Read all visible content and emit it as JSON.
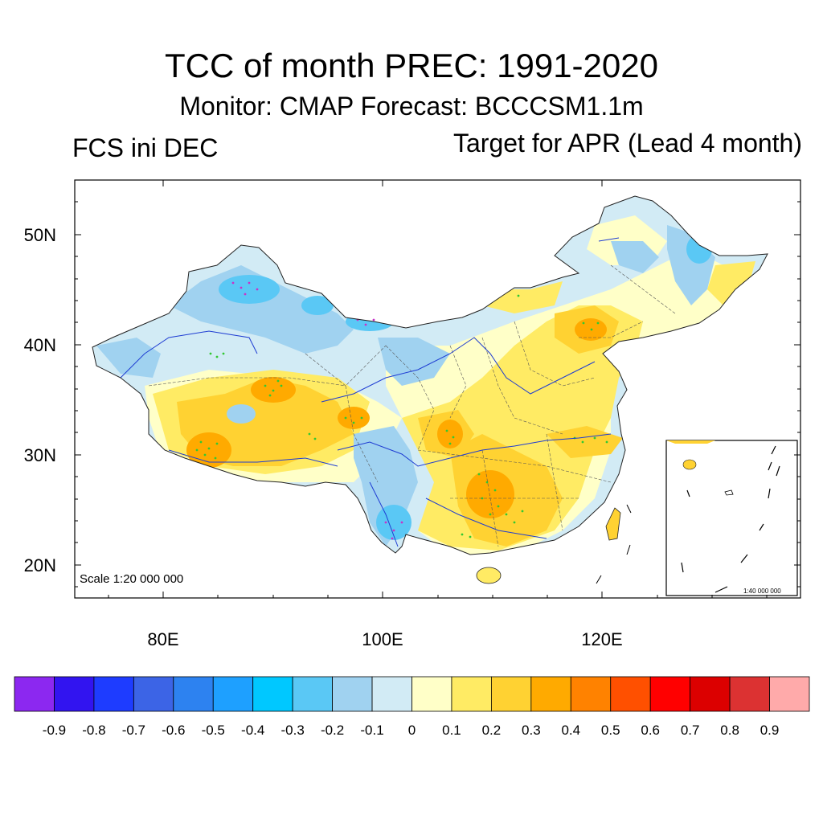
{
  "header": {
    "title": "TCC of month PREC: 1991-2020",
    "subtitle": "Monitor: CMAP   Forecast: BCCCSM1.1m",
    "left_label": "FCS ini DEC",
    "right_label": "Target for APR (Lead 4 month)"
  },
  "map": {
    "lat_labels": [
      "50N",
      "40N",
      "30N",
      "20N"
    ],
    "lon_labels": [
      "80E",
      "100E",
      "120E"
    ],
    "scale_label": "Scale 1:20 000 000",
    "inset_scale_label": "1:40 000 000"
  },
  "colorbar": {
    "colors": [
      "#8c28f0",
      "#3214f0",
      "#1e3cff",
      "#3c64e6",
      "#2d82f0",
      "#1ea0ff",
      "#00c8ff",
      "#5ac8f5",
      "#a0d2f0",
      "#d2ebf5",
      "#ffffc8",
      "#ffeb64",
      "#ffd232",
      "#ffaa00",
      "#ff8200",
      "#ff5000",
      "#ff0000",
      "#dc0000",
      "#dc3232",
      "#ffaaaa"
    ],
    "labels": [
      "-0.9",
      "-0.8",
      "-0.7",
      "-0.6",
      "-0.5",
      "-0.4",
      "-0.3",
      "-0.2",
      "-0.1",
      "0",
      "0.1",
      "0.2",
      "0.3",
      "0.4",
      "0.5",
      "0.6",
      "0.7",
      "0.8",
      "0.9"
    ]
  }
}
